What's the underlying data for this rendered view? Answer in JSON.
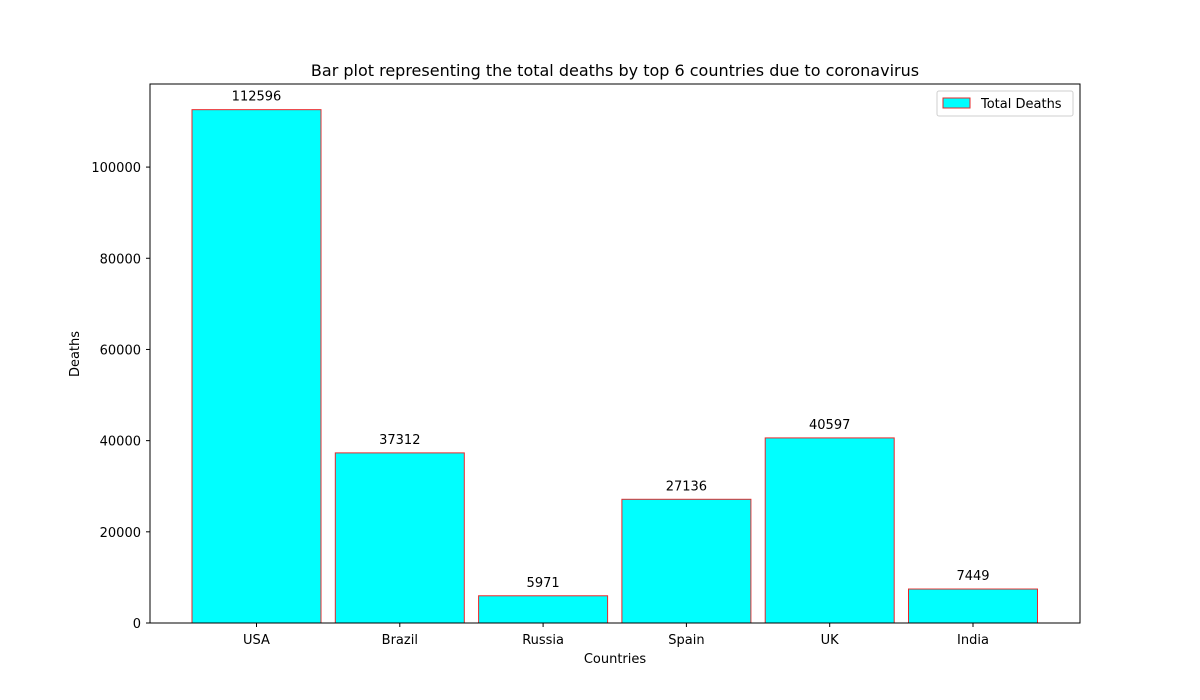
{
  "chart_data": {
    "type": "bar",
    "title": "Bar plot representing the total deaths by top 6 countries due to coronavirus",
    "xlabel": "Countries",
    "ylabel": "Deaths",
    "categories": [
      "USA",
      "Brazil",
      "Russia",
      "Spain",
      "UK",
      "India"
    ],
    "series": [
      {
        "name": "Total Deaths",
        "values": [
          112596,
          37312,
          5971,
          27136,
          40597,
          7449
        ],
        "data_labels": [
          "112596",
          "37312",
          "5971",
          "27136",
          "40597",
          "7449"
        ]
      }
    ],
    "ylim": [
      0,
      118226
    ],
    "yticks": [
      0,
      20000,
      40000,
      60000,
      80000,
      100000
    ],
    "ytick_labels": [
      "0",
      "20000",
      "40000",
      "60000",
      "80000",
      "100000"
    ],
    "grid": false,
    "legend_position": "top-right",
    "colors": {
      "bar_fill": "#00ffff",
      "bar_edge": "#e8282b",
      "axis": "#000000",
      "background": "#ffffff"
    }
  }
}
